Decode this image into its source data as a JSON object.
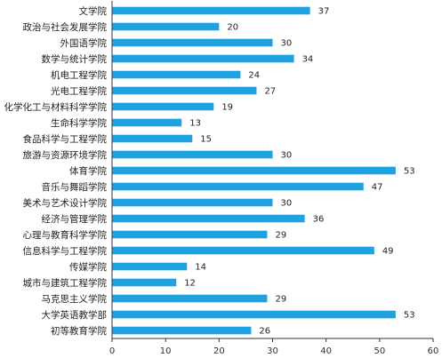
{
  "chart_data": {
    "type": "bar",
    "orientation": "horizontal",
    "categories": [
      "文学院",
      "政治与社会发展学院",
      "外国语学院",
      "数学与统计学院",
      "机电工程学院",
      "光电工程学院",
      "化学化工与材料科学学院",
      "生命科学学院",
      "食品科学与工程学院",
      "旅游与资源环境学院",
      "体育学院",
      "音乐与舞蹈学院",
      "美术与艺术设计学院",
      "经济与管理学院",
      "心理与教育科学学院",
      "信息科学与工程学院",
      "传媒学院",
      "城市与建筑工程学院",
      "马克思主义学院",
      "大学英语教学部",
      "初等教育学院"
    ],
    "values": [
      37,
      20,
      30,
      34,
      24,
      27,
      19,
      13,
      15,
      30,
      53,
      47,
      30,
      36,
      29,
      49,
      14,
      12,
      29,
      53,
      26
    ],
    "value_labels": [
      "37",
      "20",
      "30",
      "34",
      "24",
      "27",
      "19",
      "13",
      "15",
      "30",
      "53",
      "47",
      "30",
      "36",
      "29",
      "49",
      "14",
      "12",
      "29",
      "53",
      "26"
    ],
    "xlim": [
      0,
      60
    ],
    "x_ticks": [
      0,
      10,
      20,
      30,
      40,
      50,
      60
    ],
    "x_tick_labels": [
      "0",
      "10",
      "20",
      "30",
      "40",
      "50",
      "60"
    ],
    "grid": false,
    "legend": "none",
    "title": "",
    "xlabel": "",
    "ylabel": "",
    "colors": {
      "bar": "#1fa3e0",
      "axis": "#333333",
      "text": "#222222"
    }
  }
}
